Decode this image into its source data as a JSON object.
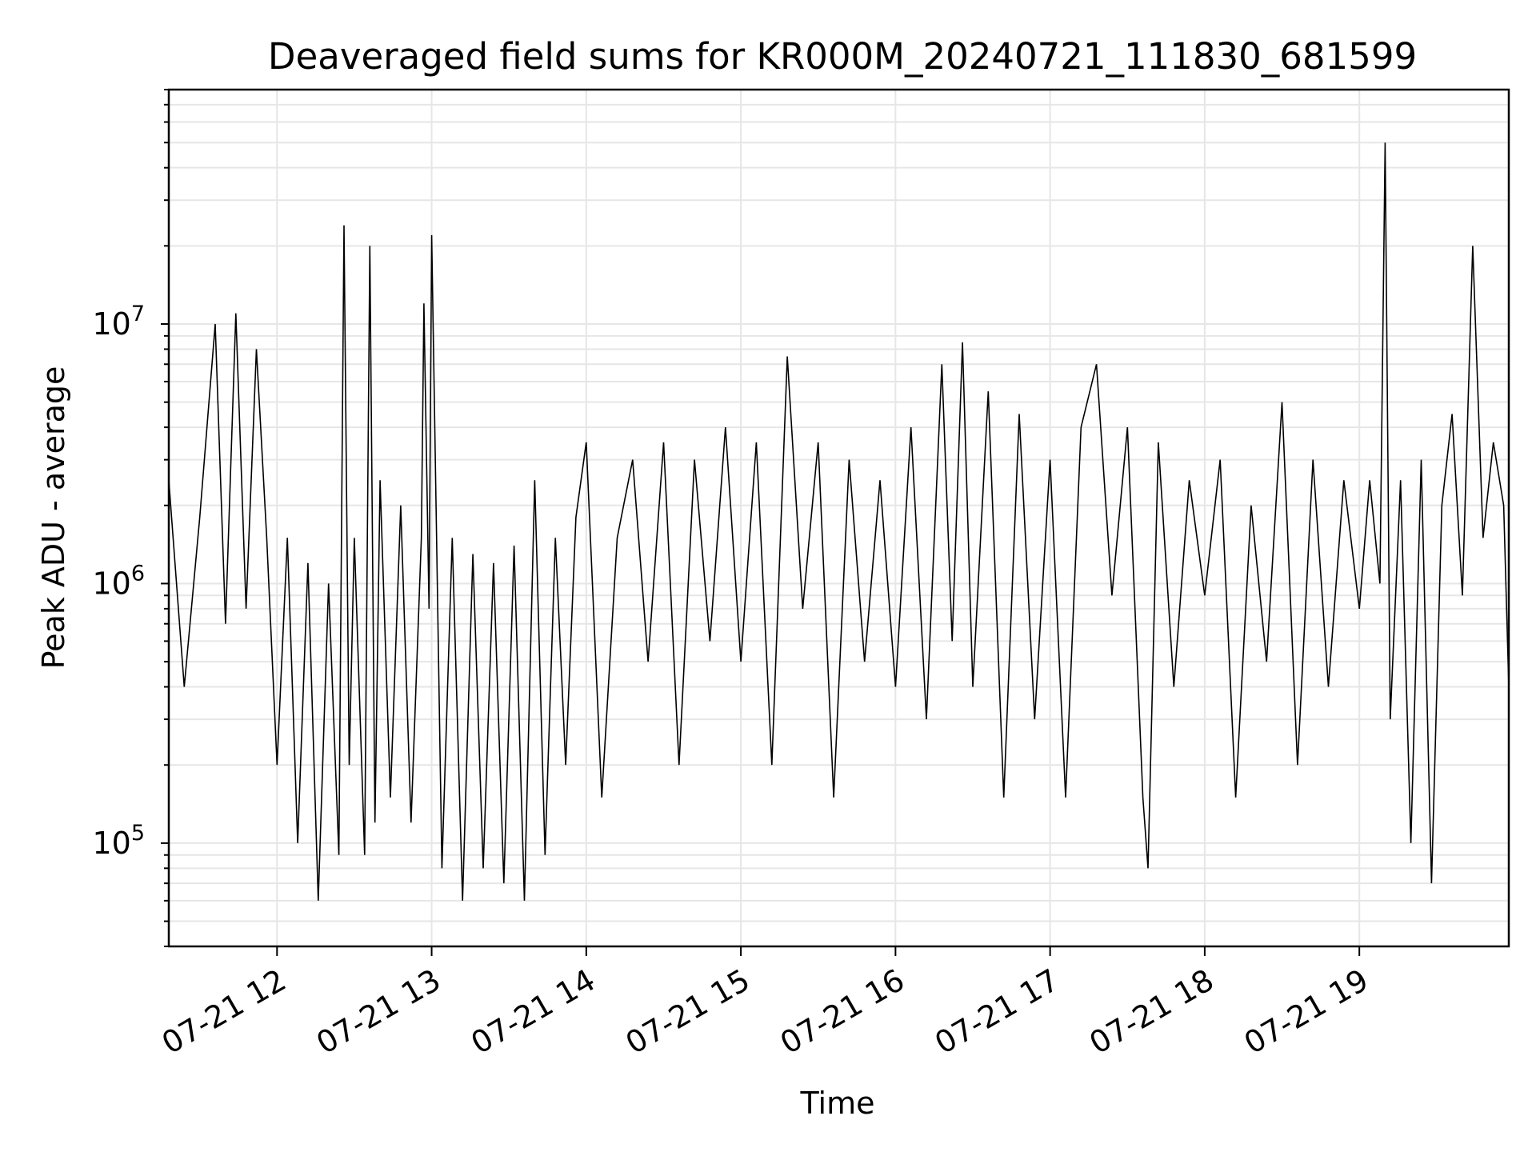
{
  "chart_data": {
    "type": "line",
    "title": "Deaveraged field sums for KR000M_20240721_111830_681599",
    "xlabel": "Time",
    "ylabel": "Peak ADU - average",
    "yscale": "log",
    "ylim": [
      40000,
      80000000
    ],
    "xlim": [
      "2024-07-21 11:18",
      "2024-07-21 19:58"
    ],
    "grid": true,
    "line_color": "#000000",
    "grid_color": "#e6e6e6",
    "x_ticks": [
      "07-21 12",
      "07-21 13",
      "07-21 14",
      "07-21 15",
      "07-21 16",
      "07-21 17",
      "07-21 18",
      "07-21 19"
    ],
    "y_ticks": [
      {
        "base": "10",
        "exp": "5",
        "value": 100000
      },
      {
        "base": "10",
        "exp": "6",
        "value": 1000000
      },
      {
        "base": "10",
        "exp": "7",
        "value": 10000000
      }
    ],
    "series": [
      {
        "x": [
          "2024-07-21 11:18",
          "2024-07-21 11:24",
          "2024-07-21 11:30",
          "2024-07-21 11:36",
          "2024-07-21 11:40",
          "2024-07-21 11:44",
          "2024-07-21 11:48",
          "2024-07-21 11:52",
          "2024-07-21 11:56",
          "2024-07-21 12:00",
          "2024-07-21 12:04",
          "2024-07-21 12:08",
          "2024-07-21 12:12",
          "2024-07-21 12:16",
          "2024-07-21 12:20",
          "2024-07-21 12:24",
          "2024-07-21 12:26",
          "2024-07-21 12:28",
          "2024-07-21 12:30",
          "2024-07-21 12:34",
          "2024-07-21 12:36",
          "2024-07-21 12:38",
          "2024-07-21 12:40",
          "2024-07-21 12:44",
          "2024-07-21 12:48",
          "2024-07-21 12:52",
          "2024-07-21 12:56",
          "2024-07-21 12:57",
          "2024-07-21 12:59",
          "2024-07-21 13:00",
          "2024-07-21 13:04",
          "2024-07-21 13:08",
          "2024-07-21 13:12",
          "2024-07-21 13:16",
          "2024-07-21 13:20",
          "2024-07-21 13:24",
          "2024-07-21 13:28",
          "2024-07-21 13:32",
          "2024-07-21 13:36",
          "2024-07-21 13:40",
          "2024-07-21 13:44",
          "2024-07-21 13:48",
          "2024-07-21 13:52",
          "2024-07-21 13:56",
          "2024-07-21 14:00",
          "2024-07-21 14:06",
          "2024-07-21 14:12",
          "2024-07-21 14:18",
          "2024-07-21 14:24",
          "2024-07-21 14:30",
          "2024-07-21 14:36",
          "2024-07-21 14:42",
          "2024-07-21 14:48",
          "2024-07-21 14:54",
          "2024-07-21 15:00",
          "2024-07-21 15:06",
          "2024-07-21 15:12",
          "2024-07-21 15:18",
          "2024-07-21 15:24",
          "2024-07-21 15:30",
          "2024-07-21 15:36",
          "2024-07-21 15:42",
          "2024-07-21 15:48",
          "2024-07-21 15:54",
          "2024-07-21 16:00",
          "2024-07-21 16:06",
          "2024-07-21 16:12",
          "2024-07-21 16:18",
          "2024-07-21 16:22",
          "2024-07-21 16:26",
          "2024-07-21 16:30",
          "2024-07-21 16:36",
          "2024-07-21 16:42",
          "2024-07-21 16:48",
          "2024-07-21 16:54",
          "2024-07-21 17:00",
          "2024-07-21 17:06",
          "2024-07-21 17:12",
          "2024-07-21 17:18",
          "2024-07-21 17:24",
          "2024-07-21 17:30",
          "2024-07-21 17:36",
          "2024-07-21 17:38",
          "2024-07-21 17:42",
          "2024-07-21 17:48",
          "2024-07-21 17:54",
          "2024-07-21 18:00",
          "2024-07-21 18:06",
          "2024-07-21 18:12",
          "2024-07-21 18:18",
          "2024-07-21 18:24",
          "2024-07-21 18:30",
          "2024-07-21 18:36",
          "2024-07-21 18:42",
          "2024-07-21 18:48",
          "2024-07-21 18:54",
          "2024-07-21 19:00",
          "2024-07-21 19:04",
          "2024-07-21 19:08",
          "2024-07-21 19:10",
          "2024-07-21 19:12",
          "2024-07-21 19:16",
          "2024-07-21 19:20",
          "2024-07-21 19:24",
          "2024-07-21 19:28",
          "2024-07-21 19:32",
          "2024-07-21 19:36",
          "2024-07-21 19:40",
          "2024-07-21 19:44",
          "2024-07-21 19:48",
          "2024-07-21 19:52",
          "2024-07-21 19:56",
          "2024-07-21 19:58"
        ],
        "y": [
          2500000,
          400000,
          1800000,
          10000000,
          700000,
          11000000,
          800000,
          8000000,
          1500000,
          200000,
          1500000,
          100000,
          1200000,
          60000,
          1000000,
          90000,
          24000000,
          200000,
          1500000,
          90000,
          20000000,
          120000,
          2500000,
          150000,
          2000000,
          120000,
          1500000,
          12000000,
          800000,
          22000000,
          80000,
          1500000,
          60000,
          1300000,
          80000,
          1200000,
          70000,
          1400000,
          60000,
          2500000,
          90000,
          1500000,
          200000,
          1800000,
          3500000,
          150000,
          1500000,
          3000000,
          500000,
          3500000,
          200000,
          3000000,
          600000,
          4000000,
          500000,
          3500000,
          200000,
          7500000,
          800000,
          3500000,
          150000,
          3000000,
          500000,
          2500000,
          400000,
          4000000,
          300000,
          7000000,
          600000,
          8500000,
          400000,
          5500000,
          150000,
          4500000,
          300000,
          3000000,
          150000,
          4000000,
          7000000,
          900000,
          4000000,
          150000,
          80000,
          3500000,
          400000,
          2500000,
          900000,
          3000000,
          150000,
          2000000,
          500000,
          5000000,
          200000,
          3000000,
          400000,
          2500000,
          800000,
          2500000,
          1000000,
          50000000,
          300000,
          2500000,
          100000,
          3000000,
          70000,
          2000000,
          4500000,
          900000,
          20000000,
          1500000,
          3500000,
          2000000,
          400000
        ]
      }
    ]
  }
}
